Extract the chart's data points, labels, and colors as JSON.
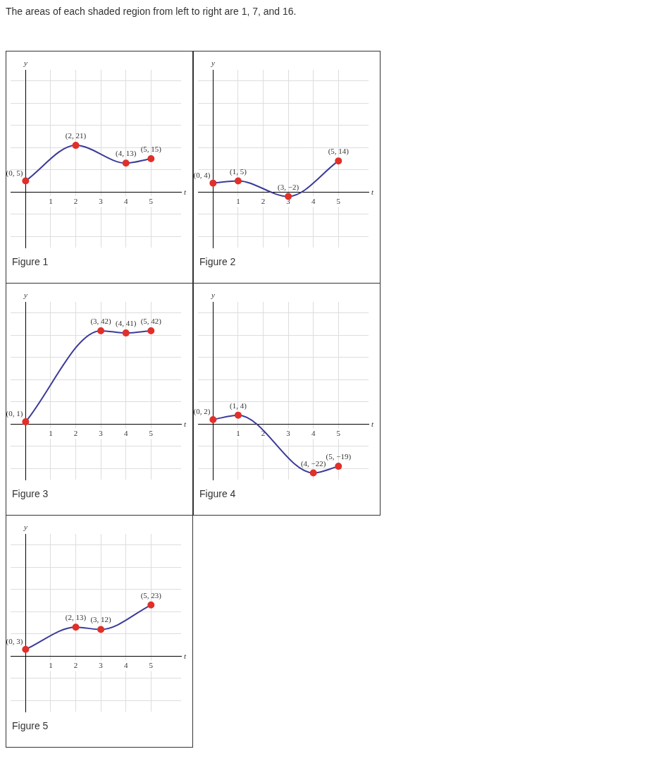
{
  "chart_data": [
    {
      "type": "line",
      "title": "Figure 1",
      "annotations": [
        "The areas of each shaded region from left to right are 1, 7, and 16."
      ],
      "xlabel": "t",
      "ylabel": "y",
      "x": [
        0,
        2,
        4,
        5
      ],
      "xlim": [
        -0.6,
        6.2
      ],
      "ylim": [
        -25,
        55
      ],
      "xticks": [
        1,
        2,
        3,
        4,
        5
      ],
      "yticks": [
        {
          "value": -20,
          "label": null
        },
        {
          "value": -10,
          "label": null
        },
        {
          "value": 10,
          "label": null
        },
        {
          "value": 20,
          "label": null
        },
        {
          "value": 30,
          "label": null
        },
        {
          "value": 40,
          "label": null
        },
        {
          "value": 50,
          "label": null
        }
      ],
      "tick_labels": "x",
      "grid": true,
      "legend": false,
      "marker": "circle",
      "series": [
        {
          "color": "#3b3b98",
          "colors": [
            "#e0302a",
            "#e0302a",
            "#e0302a",
            "#e0302a"
          ],
          "values": [
            5,
            21,
            13,
            15
          ],
          "value_labels": [
            "(0, 5)",
            "(2, 21)",
            "(4, 13)",
            "(5, 15)"
          ]
        }
      ]
    },
    {
      "type": "line",
      "title": "Figure 2",
      "xlabel": "t",
      "ylabel": "y",
      "x": [
        0,
        1,
        3,
        5
      ],
      "xlim": [
        -0.6,
        6.2
      ],
      "ylim": [
        -25,
        55
      ],
      "xticks": [
        1,
        2,
        3,
        4,
        5
      ],
      "yticks": [
        {
          "value": -20,
          "label": null
        },
        {
          "value": -10,
          "label": null
        },
        {
          "value": 10,
          "label": null
        },
        {
          "value": 20,
          "label": null
        },
        {
          "value": 30,
          "label": null
        },
        {
          "value": 40,
          "label": null
        },
        {
          "value": 50,
          "label": null
        }
      ],
      "tick_labels": "x",
      "grid": true,
      "legend": false,
      "marker": "circle",
      "series": [
        {
          "color": "#3b3b98",
          "colors": [
            "#e0302a",
            "#e0302a",
            "#e0302a",
            "#e0302a"
          ],
          "values": [
            4,
            5,
            -2,
            14
          ],
          "value_labels": [
            "(0, 4)",
            "(1, 5)",
            "(3, −2)",
            "(5, 14)"
          ]
        }
      ]
    },
    {
      "type": "line",
      "title": "Figure 3",
      "xlabel": "t",
      "ylabel": "y",
      "x": [
        0,
        3,
        4,
        5
      ],
      "xlim": [
        -0.6,
        6.2
      ],
      "ylim": [
        -25,
        55
      ],
      "xticks": [
        1,
        2,
        3,
        4,
        5
      ],
      "yticks": [
        {
          "value": -20,
          "label": null
        },
        {
          "value": -10,
          "label": null
        },
        {
          "value": 10,
          "label": null
        },
        {
          "value": 20,
          "label": null
        },
        {
          "value": 30,
          "label": null
        },
        {
          "value": 40,
          "label": null
        },
        {
          "value": 50,
          "label": null
        }
      ],
      "tick_labels": "x",
      "grid": true,
      "legend": false,
      "marker": "circle",
      "series": [
        {
          "color": "#3b3b98",
          "colors": [
            "#e0302a",
            "#e0302a",
            "#e0302a",
            "#e0302a"
          ],
          "values": [
            1,
            42,
            41,
            42
          ],
          "value_labels": [
            "(0, 1)",
            "(3, 42)",
            "(4, 41)",
            "(5, 42)"
          ]
        }
      ]
    },
    {
      "type": "line",
      "title": "Figure 4",
      "xlabel": "t",
      "ylabel": "y",
      "x": [
        0,
        1,
        4,
        5
      ],
      "xlim": [
        -0.6,
        6.2
      ],
      "ylim": [
        -25,
        55
      ],
      "xticks": [
        1,
        2,
        3,
        4,
        5
      ],
      "yticks": [
        {
          "value": -20,
          "label": null
        },
        {
          "value": -10,
          "label": null
        },
        {
          "value": 10,
          "label": null
        },
        {
          "value": 20,
          "label": null
        },
        {
          "value": 30,
          "label": null
        },
        {
          "value": 40,
          "label": null
        },
        {
          "value": 50,
          "label": null
        }
      ],
      "tick_labels": "x",
      "grid": true,
      "legend": false,
      "marker": "circle",
      "series": [
        {
          "color": "#3b3b98",
          "colors": [
            "#e0302a",
            "#e0302a",
            "#e0302a",
            "#e0302a"
          ],
          "values": [
            2,
            4,
            -22,
            -19
          ],
          "value_labels": [
            "(0, 2)",
            "(1, 4)",
            "(4, −22)",
            "(5, −19)"
          ]
        }
      ]
    },
    {
      "type": "line",
      "title": "Figure 5",
      "xlabel": "t",
      "ylabel": "y",
      "x": [
        0,
        2,
        3,
        5
      ],
      "xlim": [
        -0.6,
        6.2
      ],
      "ylim": [
        -25,
        55
      ],
      "xticks": [
        1,
        2,
        3,
        4,
        5
      ],
      "yticks": [
        {
          "value": -20,
          "label": null
        },
        {
          "value": -10,
          "label": null
        },
        {
          "value": 10,
          "label": null
        },
        {
          "value": 20,
          "label": null
        },
        {
          "value": 30,
          "label": null
        },
        {
          "value": 40,
          "label": null
        },
        {
          "value": 50,
          "label": null
        }
      ],
      "tick_labels": "x",
      "grid": true,
      "legend": false,
      "marker": "circle",
      "series": [
        {
          "color": "#3b3b98",
          "colors": [
            "#e0302a",
            "#e0302a",
            "#e0302a",
            "#e0302a"
          ],
          "values": [
            3,
            13,
            12,
            23
          ],
          "value_labels": [
            "(0, 3)",
            "(2, 13)",
            "(3, 12)",
            "(5, 23)"
          ]
        }
      ]
    }
  ]
}
